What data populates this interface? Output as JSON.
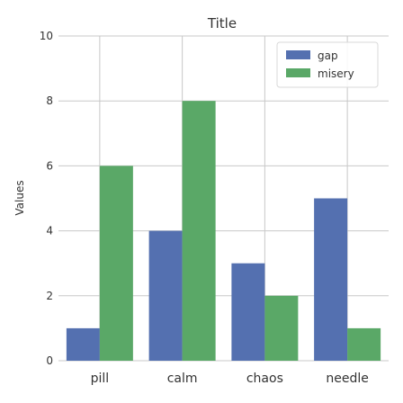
{
  "chart_data": {
    "type": "bar",
    "title": "Title",
    "xlabel": "",
    "ylabel": "Values",
    "ylim": [
      0,
      10
    ],
    "yticks": [
      0,
      2,
      4,
      6,
      8,
      10
    ],
    "grid": true,
    "legend_position": "top-right",
    "categories": [
      "pill",
      "calm",
      "chaos",
      "needle"
    ],
    "series": [
      {
        "name": "gap",
        "color": "#5470b0",
        "values": [
          1,
          4,
          3,
          5
        ]
      },
      {
        "name": "misery",
        "color": "#5aa867",
        "values": [
          6,
          8,
          2,
          1
        ]
      }
    ]
  }
}
